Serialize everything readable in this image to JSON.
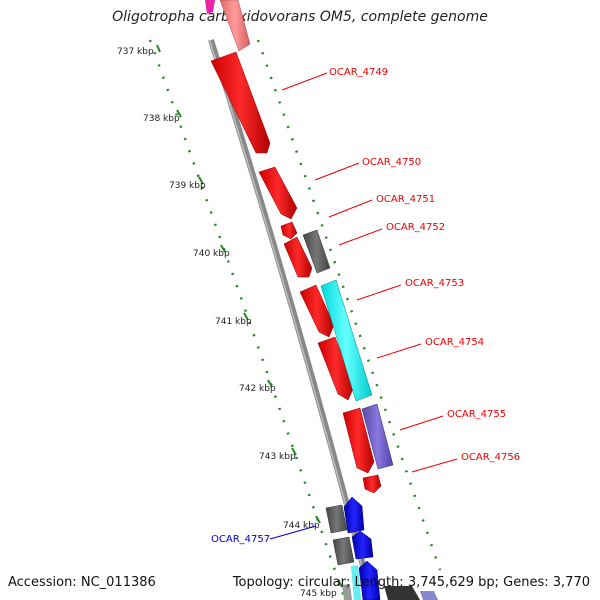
{
  "title": "Oligotropha carboxidovorans OM5, complete genome",
  "footer": {
    "accession_label": "Accession:",
    "accession": "NC_011386",
    "topology_label": "Topology:",
    "topology": "circular",
    "length_label": "Length:",
    "length": "3,745,629 bp",
    "genes_label": "Genes:",
    "genes": "3,770"
  },
  "kbp_labels": [
    "737 kbp",
    "738 kbp",
    "739 kbp",
    "740 kbp",
    "741 kbp",
    "742 kbp",
    "743 kbp",
    "744 kbp",
    "745 kbp"
  ],
  "gene_labels": [
    {
      "text": "OCAR_4749",
      "color": "#ee0000"
    },
    {
      "text": "OCAR_4750",
      "color": "#ee0000"
    },
    {
      "text": "OCAR_4751",
      "color": "#ee0000"
    },
    {
      "text": "OCAR_4752",
      "color": "#ee0000"
    },
    {
      "text": "OCAR_4753",
      "color": "#ee0000"
    },
    {
      "text": "OCAR_4754",
      "color": "#ee0000"
    },
    {
      "text": "OCAR_4755",
      "color": "#ee0000"
    },
    {
      "text": "OCAR_4756",
      "color": "#ee0000"
    },
    {
      "text": "OCAR_4757",
      "color": "#0000cc"
    }
  ],
  "colors": {
    "cds_red": "#ff0000",
    "cds_gray": "#666666",
    "cds_cyan": "#00ffff",
    "cds_purple": "#7766cc",
    "cds_blue": "#0000ff",
    "backbone": "#888888",
    "tick_green": "#228822"
  }
}
